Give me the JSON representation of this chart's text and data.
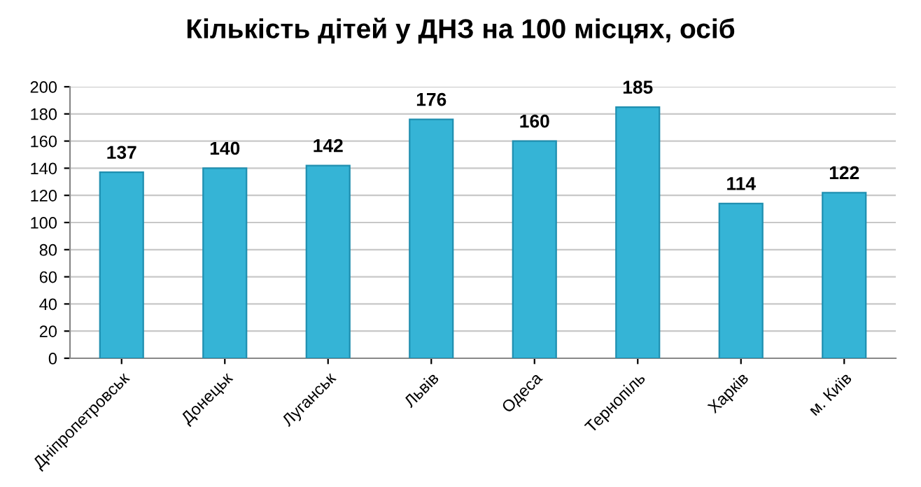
{
  "chart_data": {
    "type": "bar",
    "title": "Кількість дітей у ДНЗ на 100 місцях, осіб",
    "categories": [
      "Дніпропетровськ",
      "Донецьк",
      "Луганськ",
      "Львів",
      "Одеса",
      "Тернопіль",
      "Харків",
      "м. Київ"
    ],
    "values": [
      137,
      140,
      142,
      176,
      160,
      185,
      114,
      122
    ],
    "color": "#35b4d6",
    "ylim": [
      0,
      200
    ],
    "yticks": [
      0,
      20,
      40,
      60,
      80,
      100,
      120,
      140,
      160,
      180,
      200
    ],
    "grid": "y",
    "data_labels": true,
    "legend": false
  }
}
